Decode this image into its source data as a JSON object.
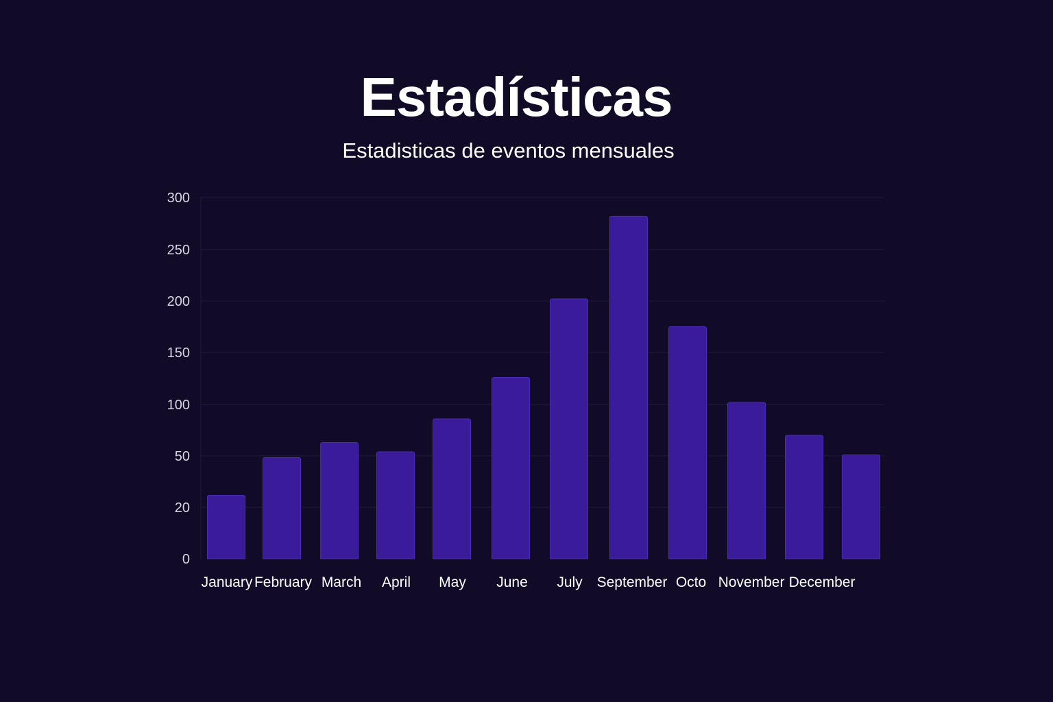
{
  "chart_data": {
    "type": "bar",
    "title": "Estadísticas",
    "subtitle": "Estadisticas de eventos mensuales",
    "xlabel": "",
    "ylabel": "",
    "categories": [
      "January",
      "February",
      "March",
      "April",
      "May",
      "June",
      "July",
      "September",
      "Octo",
      "November",
      "December",
      ""
    ],
    "values": [
      27,
      49,
      63,
      54,
      86,
      126,
      202,
      282,
      175,
      102,
      70,
      51
    ],
    "y_tick_labels": [
      "0",
      "20",
      "50",
      "100",
      "150",
      "200",
      "250",
      "300"
    ],
    "ylim": [
      0,
      300
    ],
    "grid": true,
    "legend": "none",
    "colors": {
      "background": "#110b27",
      "bar": "#3a1c9a",
      "bar_edge": "#4a2bb5",
      "grid": "#221a3e",
      "text": "#ffffff",
      "tick_text": "#d8d5e6"
    }
  }
}
